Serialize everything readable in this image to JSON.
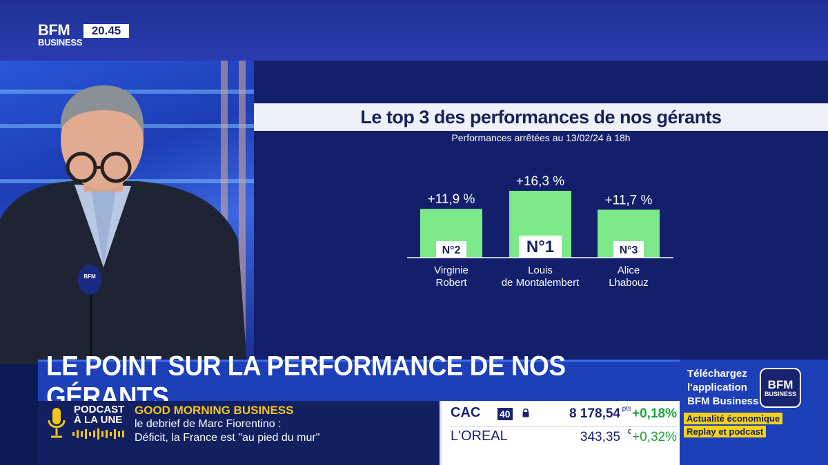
{
  "channel": {
    "logo_top": "BFM",
    "logo_bottom": "BUSINESS",
    "clock": "20.45"
  },
  "chart_data": {
    "type": "bar",
    "title": "Le top 3 des performances de nos gérants",
    "subtitle": "Performances arrêtées au 13/02/24 à 18h",
    "categories": [
      "Virginie Robert",
      "Louis de Montalembert",
      "Alice Lhabouz"
    ],
    "category_lines": [
      [
        "Virginie",
        "Robert"
      ],
      [
        "Louis",
        "de Montalembert"
      ],
      [
        "Alice",
        "Lhabouz"
      ]
    ],
    "values": [
      11.9,
      16.3,
      11.7
    ],
    "value_labels": [
      "+11,9 %",
      "+16,3 %",
      "+11,7 %"
    ],
    "ranks": [
      "N°2",
      "N°1",
      "N°3"
    ],
    "bar_color": "#7de88a",
    "ylim": [
      0,
      16.3
    ],
    "grid": false
  },
  "headline": "LE POINT SUR LA PERFORMANCE DE NOS GÉRANTS",
  "ticker": {
    "podcast_line1": "PODCAST",
    "podcast_line2": "À LA UNE",
    "show_name": "GOOD MORNING BUSINESS",
    "line1": "le debrief de Marc Fiorentino :",
    "line2": "Déficit, la France est \"au pied du mur\"",
    "mic_icon": "microphone-icon",
    "wave_icon": "soundwave-icon"
  },
  "market": {
    "cac": {
      "name": "CAC",
      "badge": "40",
      "value": "8 178,54",
      "unit": "pts",
      "change": "+0,18%"
    },
    "oreal": {
      "name": "L'OREAL",
      "value": "343,35",
      "unit": "€",
      "change": "+0,32%"
    },
    "up_color": "#18a23a"
  },
  "promo": {
    "line1": "Téléchargez",
    "line2": "l'application",
    "line3": "BFM Business",
    "logo_top": "BFM",
    "logo_bottom": "BUSINESS",
    "tag1": "Actualité économique",
    "tag2": "Replay et podcast"
  }
}
